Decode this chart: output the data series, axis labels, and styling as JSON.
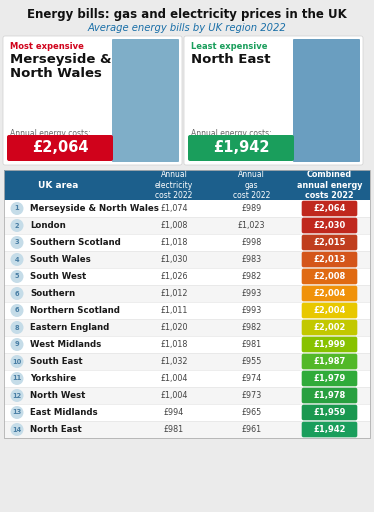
{
  "title": "Energy bills: gas and electricity prices in the UK",
  "subtitle": "Average energy bills by UK region 2022",
  "bg_color": "#ebebeb",
  "most_expensive_label": "Most expensive",
  "most_expensive_region": "Merseyside &\nNorth Wales",
  "most_expensive_cost": "£2,064",
  "most_expensive_badge_color": "#d0021b",
  "most_expensive_label_color": "#d0021b",
  "least_expensive_label": "Least expensive",
  "least_expensive_region": "North East",
  "least_expensive_cost": "£1,942",
  "least_expensive_badge_color": "#1a9e5c",
  "least_expensive_label_color": "#1a9e5c",
  "annual_costs_label": "Annual energy costs:",
  "header_bg": "#1c5f8c",
  "header_text_color": "#ffffff",
  "col_headers": [
    "UK area",
    "Annual\nelectricity\ncost 2022",
    "Annual\ngas\ncost 2022",
    "Combined\nannual energy\ncosts 2022"
  ],
  "rows": [
    {
      "rank": 1,
      "area": "Merseyside & North Wales",
      "elec": "£1,074",
      "gas": "£989",
      "combined": "£2,064",
      "color": "#c0281e"
    },
    {
      "rank": 2,
      "area": "London",
      "elec": "£1,008",
      "gas": "£1,023",
      "combined": "£2,030",
      "color": "#c0281e"
    },
    {
      "rank": 3,
      "area": "Southern Scotland",
      "elec": "£1,018",
      "gas": "£998",
      "combined": "£2,015",
      "color": "#c03e1e"
    },
    {
      "rank": 4,
      "area": "South Wales",
      "elec": "£1,030",
      "gas": "£983",
      "combined": "£2,013",
      "color": "#d4551a"
    },
    {
      "rank": 5,
      "area": "South West",
      "elec": "£1,026",
      "gas": "£982",
      "combined": "£2,008",
      "color": "#e06a12"
    },
    {
      "rank": 6,
      "area": "Southern",
      "elec": "£1,012",
      "gas": "£993",
      "combined": "£2,004",
      "color": "#f0920a"
    },
    {
      "rank": 6,
      "area": "Northern Scotland",
      "elec": "£1,011",
      "gas": "£993",
      "combined": "£2,004",
      "color": "#e8c800"
    },
    {
      "rank": 8,
      "area": "Eastern England",
      "elec": "£1,020",
      "gas": "£982",
      "combined": "£2,002",
      "color": "#c2c800"
    },
    {
      "rank": 9,
      "area": "West Midlands",
      "elec": "£1,018",
      "gas": "£981",
      "combined": "£1,999",
      "color": "#88c200"
    },
    {
      "rank": 10,
      "area": "South East",
      "elec": "£1,032",
      "gas": "£955",
      "combined": "£1,987",
      "color": "#52b828"
    },
    {
      "rank": 11,
      "area": "Yorkshire",
      "elec": "£1,004",
      "gas": "£974",
      "combined": "£1,979",
      "color": "#30ab3a"
    },
    {
      "rank": 12,
      "area": "North West",
      "elec": "£1,004",
      "gas": "£973",
      "combined": "£1,978",
      "color": "#28a040"
    },
    {
      "rank": 13,
      "area": "East Midlands",
      "elec": "£994",
      "gas": "£965",
      "combined": "£1,959",
      "color": "#1a9850"
    },
    {
      "rank": 14,
      "area": "North East",
      "elec": "£981",
      "gas": "£961",
      "combined": "£1,942",
      "color": "#1a9e5c"
    }
  ],
  "row_bg_even": "#ffffff",
  "row_bg_odd": "#f5f5f5",
  "divider_color": "#e0e0e0",
  "rank_circle_color": "#c5dce8",
  "rank_text_color": "#4a7fa5",
  "img_color_left": "#7faec8",
  "img_color_right": "#6a9ec0"
}
